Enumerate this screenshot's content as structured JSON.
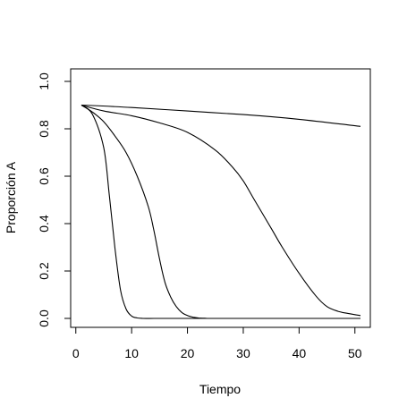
{
  "chart_data": {
    "type": "line",
    "title": "",
    "xlabel": "Tiempo",
    "ylabel": "Proporción A",
    "xlim": [
      1,
      51
    ],
    "ylim": [
      0,
      1
    ],
    "xticks": [
      "0",
      "10",
      "20",
      "30",
      "40",
      "50"
    ],
    "xtick_values": [
      0,
      10,
      20,
      30,
      40,
      50
    ],
    "yticks": [
      "0.0",
      "0.2",
      "0.4",
      "0.6",
      "0.8",
      "1.0"
    ],
    "ytick_values": [
      0,
      0.2,
      0.4,
      0.6,
      0.8,
      1.0
    ],
    "grid": false,
    "series": [
      {
        "x": [
          1,
          3,
          5,
          6,
          7,
          8,
          9,
          10,
          11,
          12,
          14,
          17,
          20,
          25,
          30,
          40,
          51
        ],
        "values": [
          0.9,
          0.86,
          0.72,
          0.52,
          0.3,
          0.12,
          0.04,
          0.01,
          0.002,
          0,
          0,
          0,
          0,
          0,
          0,
          0,
          0
        ]
      },
      {
        "x": [
          1,
          3,
          5,
          7,
          9,
          11,
          13,
          14,
          15,
          16,
          17,
          18,
          19,
          20,
          21,
          22,
          23.5
        ],
        "values": [
          0.9,
          0.87,
          0.83,
          0.77,
          0.7,
          0.6,
          0.47,
          0.37,
          0.25,
          0.15,
          0.09,
          0.05,
          0.025,
          0.012,
          0.005,
          0.002,
          0
        ]
      },
      {
        "x": [
          1,
          5,
          10,
          15,
          20,
          25,
          28,
          30,
          32,
          35,
          37,
          40,
          43,
          45,
          47,
          49,
          51
        ],
        "values": [
          0.9,
          0.875,
          0.855,
          0.825,
          0.785,
          0.71,
          0.64,
          0.58,
          0.5,
          0.38,
          0.3,
          0.19,
          0.095,
          0.05,
          0.03,
          0.02,
          0.012
        ]
      },
      {
        "x": [
          1,
          10,
          20,
          30,
          40,
          51
        ],
        "values": [
          0.9,
          0.89,
          0.875,
          0.86,
          0.84,
          0.81
        ]
      }
    ]
  }
}
